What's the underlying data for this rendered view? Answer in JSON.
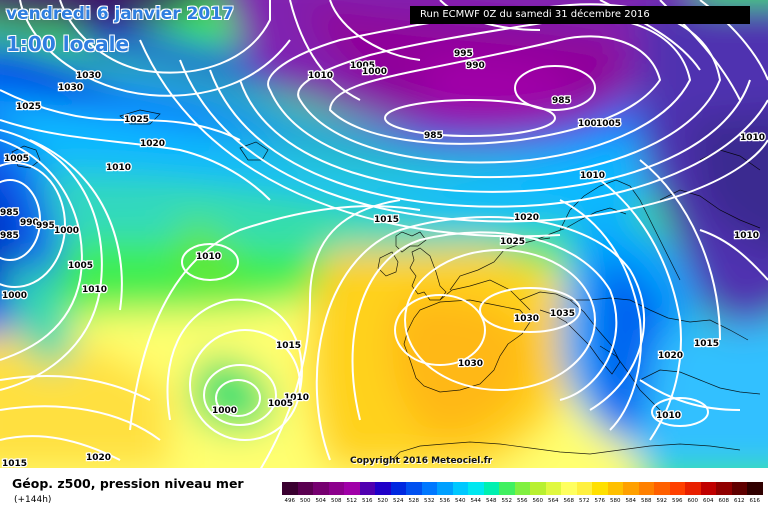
{
  "header": {
    "date_label": "vendredi 6 janvier 2017",
    "time_label": "1:00 locale",
    "run_label": "Run ECMWF 0Z du samedi 31 décembre 2016"
  },
  "copyright": "Copyright 2016 Meteociel.fr",
  "legend": {
    "title": "Géop. z500, pression niveau mer",
    "subtitle": "(+144h)",
    "scale_values": [
      "496",
      "500",
      "504",
      "508",
      "512",
      "516",
      "520",
      "524",
      "528",
      "532",
      "536",
      "540",
      "544",
      "548",
      "552",
      "556",
      "560",
      "564",
      "568",
      "572",
      "576",
      "580",
      "584",
      "588",
      "592",
      "596",
      "600",
      "604",
      "608",
      "612",
      "616"
    ],
    "scale_colors": [
      "#3a0030",
      "#5a0050",
      "#760070",
      "#8c008c",
      "#a000a8",
      "#5000b0",
      "#2000c8",
      "#0028e0",
      "#0050f0",
      "#0078ff",
      "#00a0ff",
      "#00c8ff",
      "#00e8f0",
      "#00f0b0",
      "#40f060",
      "#80f040",
      "#b8f030",
      "#e0f840",
      "#ffff60",
      "#fff040",
      "#ffe000",
      "#ffc000",
      "#ffa000",
      "#ff8000",
      "#ff6000",
      "#ff4000",
      "#e82000",
      "#c00000",
      "#900000",
      "#600000",
      "#300000"
    ]
  },
  "pressure_labels": [
    "1030",
    "1030",
    "1025",
    "1025",
    "1020",
    "1010",
    "1005",
    "985",
    "990",
    "995",
    "985",
    "1000",
    "1005",
    "1010",
    "1000",
    "1010",
    "1015",
    "1010",
    "1000",
    "1005",
    "1010",
    "1015",
    "1020",
    "1015",
    "1010",
    "1005",
    "1000",
    "995",
    "990",
    "985",
    "985",
    "1005",
    "1005",
    "1010",
    "1020",
    "1025",
    "1030",
    "1035",
    "1030",
    "1020",
    "1015",
    "1010",
    "1010"
  ]
}
